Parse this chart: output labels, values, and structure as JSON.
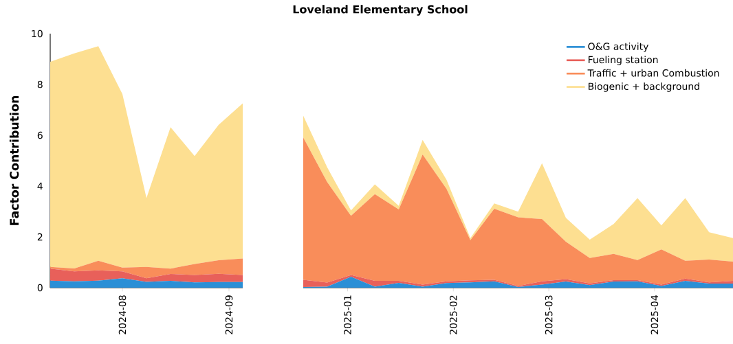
{
  "chart_data": [
    {
      "type": "area",
      "stacked": true,
      "ylabel": "Factor Contribution",
      "x": [
        "2024-07-11",
        "2024-07-18",
        "2024-07-25",
        "2024-08-01",
        "2024-08-08",
        "2024-08-15",
        "2024-08-22",
        "2024-08-29",
        "2024-09-05"
      ],
      "xlim": [
        "2024-07-11",
        "2024-09-05"
      ],
      "xticks": [
        {
          "value": "2024-08-01",
          "label": "2024-08"
        },
        {
          "value": "2024-09-01",
          "label": "2024-09"
        }
      ],
      "ylim": [
        0,
        10
      ],
      "yticks": [
        0,
        2,
        4,
        6,
        8,
        10
      ],
      "series": [
        {
          "color": "#2b8fd6",
          "values": [
            0.28,
            0.25,
            0.28,
            0.37,
            0.23,
            0.27,
            0.21,
            0.22,
            0.22
          ]
        },
        {
          "color": "#e8605a",
          "values": [
            0.47,
            0.39,
            0.4,
            0.27,
            0.14,
            0.27,
            0.29,
            0.33,
            0.28
          ]
        },
        {
          "color": "#f98d5a",
          "values": [
            0.07,
            0.12,
            0.38,
            0.15,
            0.45,
            0.21,
            0.43,
            0.53,
            0.65
          ]
        },
        {
          "color": "#fddf91",
          "values": [
            8.07,
            8.46,
            8.45,
            6.83,
            2.71,
            5.57,
            4.25,
            5.33,
            6.11
          ]
        }
      ]
    },
    {
      "type": "area",
      "stacked": true,
      "title": "Loveland Elementary School",
      "legend": "top right",
      "tick_labels": "x",
      "x": [
        "2024-12-19",
        "2024-12-26",
        "2025-01-02",
        "2025-01-09",
        "2025-01-16",
        "2025-01-23",
        "2025-01-30",
        "2025-02-06",
        "2025-02-13",
        "2025-02-20",
        "2025-02-27",
        "2025-03-06",
        "2025-03-13",
        "2025-03-20",
        "2025-03-27",
        "2025-04-03",
        "2025-04-10",
        "2025-04-17",
        "2025-04-24"
      ],
      "xlim": [
        "2024-12-19",
        "2025-04-24"
      ],
      "xticks": [
        {
          "value": "2025-01-01",
          "label": "2025-01"
        },
        {
          "value": "2025-02-01",
          "label": "2025-02"
        },
        {
          "value": "2025-03-01",
          "label": "2025-03"
        },
        {
          "value": "2025-04-01",
          "label": "2025-04"
        }
      ],
      "ylim": [
        0,
        10
      ],
      "series": [
        {
          "name": "O&G activity",
          "color": "#2b8fd6",
          "values": [
            0.03,
            0.04,
            0.43,
            0.04,
            0.19,
            0.04,
            0.18,
            0.21,
            0.25,
            0.03,
            0.12,
            0.24,
            0.1,
            0.24,
            0.25,
            0.07,
            0.27,
            0.16,
            0.16
          ]
        },
        {
          "name": "Fueling station",
          "color": "#e8605a",
          "values": [
            0.28,
            0.16,
            0.07,
            0.23,
            0.08,
            0.08,
            0.07,
            0.08,
            0.06,
            0.04,
            0.13,
            0.1,
            0.07,
            0.06,
            0.05,
            0.05,
            0.09,
            0.05,
            0.11
          ]
        },
        {
          "name": "Traffic + urban Combustion",
          "color": "#f98d5a",
          "values": [
            5.6,
            3.96,
            2.33,
            3.41,
            2.81,
            5.12,
            3.64,
            1.58,
            2.8,
            2.7,
            2.45,
            1.47,
            1.0,
            1.03,
            0.79,
            1.39,
            0.7,
            0.9,
            0.76
          ]
        },
        {
          "name": "Biogenic + background",
          "color": "#fddf91",
          "values": [
            0.86,
            0.58,
            0.21,
            0.39,
            0.14,
            0.58,
            0.36,
            0.08,
            0.21,
            0.22,
            2.2,
            0.94,
            0.72,
            1.18,
            2.44,
            0.94,
            2.47,
            1.07,
            0.92
          ]
        }
      ]
    }
  ]
}
